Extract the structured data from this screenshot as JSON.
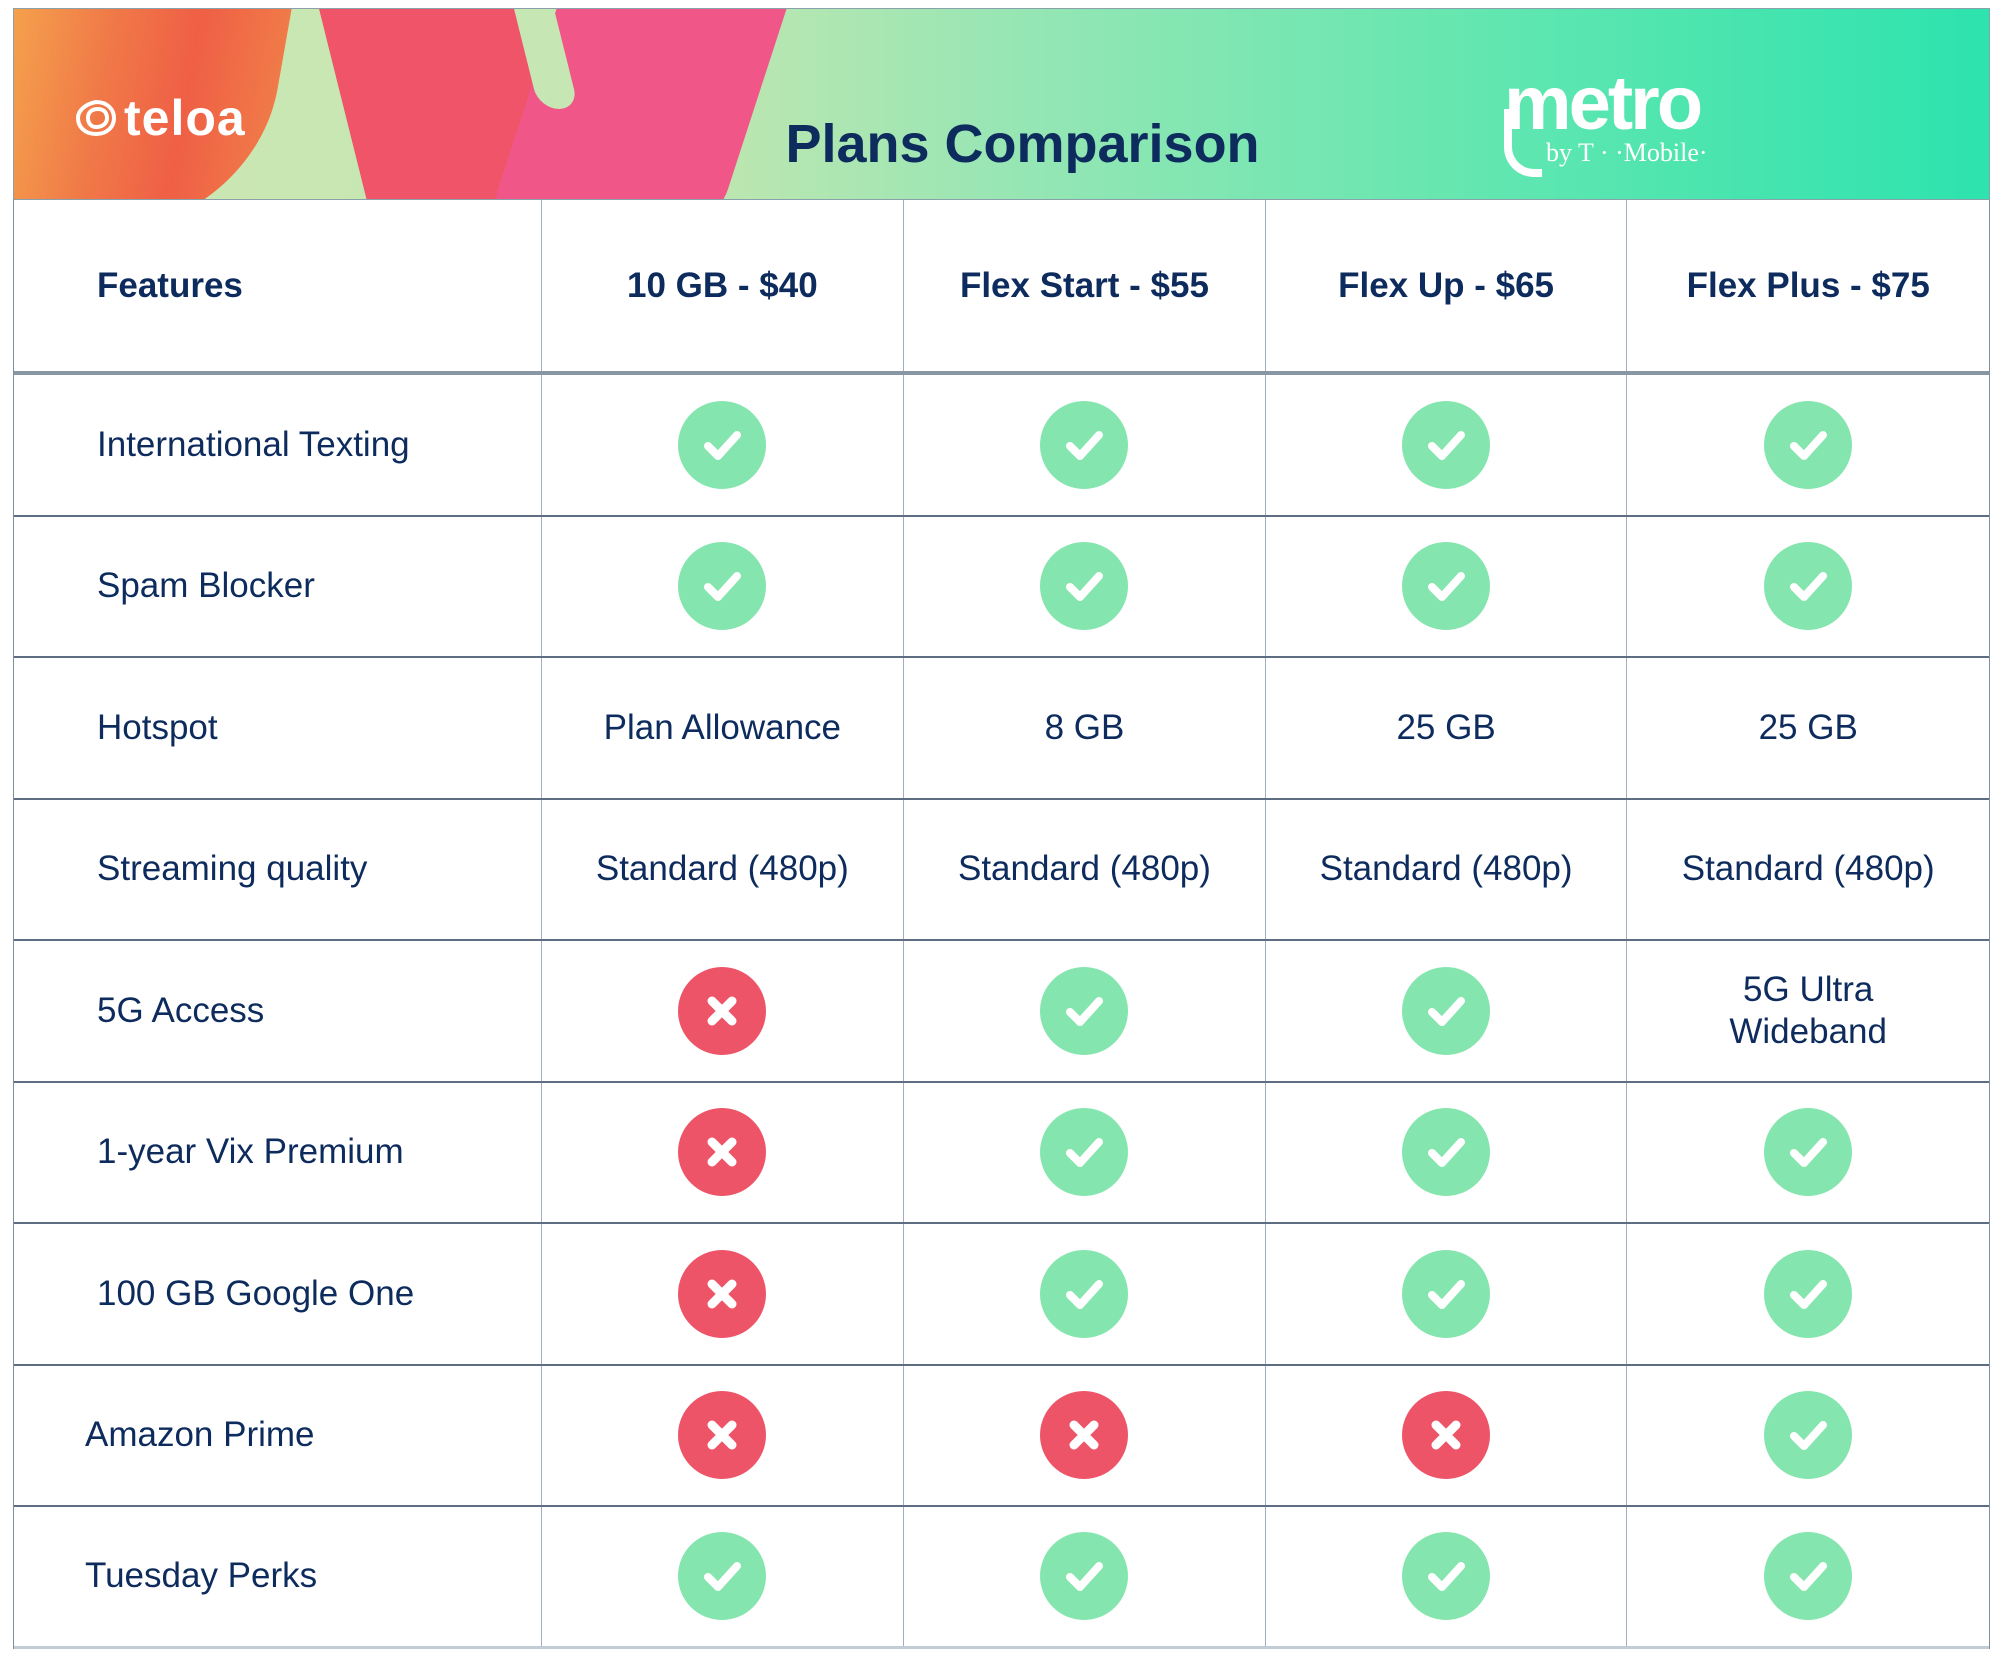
{
  "banner": {
    "brand_left": "teloa",
    "title": "Plans Comparison",
    "brand_right_word": "metro",
    "brand_right_sub": "by T · ·Mobile·",
    "colors": {
      "title": "#0d2b5c",
      "gradient_start": "#cfe8b4",
      "gradient_end": "#2de3ae",
      "orange": "#f07a48",
      "red": "#ef5469",
      "pink": "#f05687"
    }
  },
  "table": {
    "headers": [
      "Features",
      "10 GB - $40",
      "Flex Start - $55",
      "Flex Up - $65",
      "Flex Plus - $75"
    ],
    "rows": [
      {
        "feature": "International Texting",
        "values": [
          "yes",
          "yes",
          "yes",
          "yes"
        ]
      },
      {
        "feature": "Spam Blocker",
        "values": [
          "yes",
          "yes",
          "yes",
          "yes"
        ]
      },
      {
        "feature": "Hotspot",
        "values": [
          "Plan Allowance",
          "8 GB",
          "25 GB",
          "25 GB"
        ]
      },
      {
        "feature": "Streaming quality",
        "values": [
          "Standard (480p)",
          "Standard (480p)",
          "Standard (480p)",
          "Standard (480p)"
        ]
      },
      {
        "feature": "5G Access",
        "values": [
          "no",
          "yes",
          "yes",
          "5G Ultra Wideband"
        ]
      },
      {
        "feature": "1-year Vix Premium",
        "values": [
          "no",
          "yes",
          "yes",
          "yes"
        ]
      },
      {
        "feature": "100 GB Google One",
        "values": [
          "no",
          "yes",
          "yes",
          "yes"
        ]
      },
      {
        "feature": "Amazon Prime",
        "values": [
          "no",
          "no",
          "no",
          "yes"
        ]
      },
      {
        "feature": "Tuesday Perks",
        "values": [
          "yes",
          "yes",
          "yes",
          "yes"
        ]
      }
    ],
    "icons": {
      "yes": "check-circle-icon",
      "no": "x-circle-icon"
    },
    "colors": {
      "check": "#85e5ae",
      "cross": "#ee5468",
      "text": "#0d2b5c",
      "grid": "#5d6e82"
    }
  }
}
